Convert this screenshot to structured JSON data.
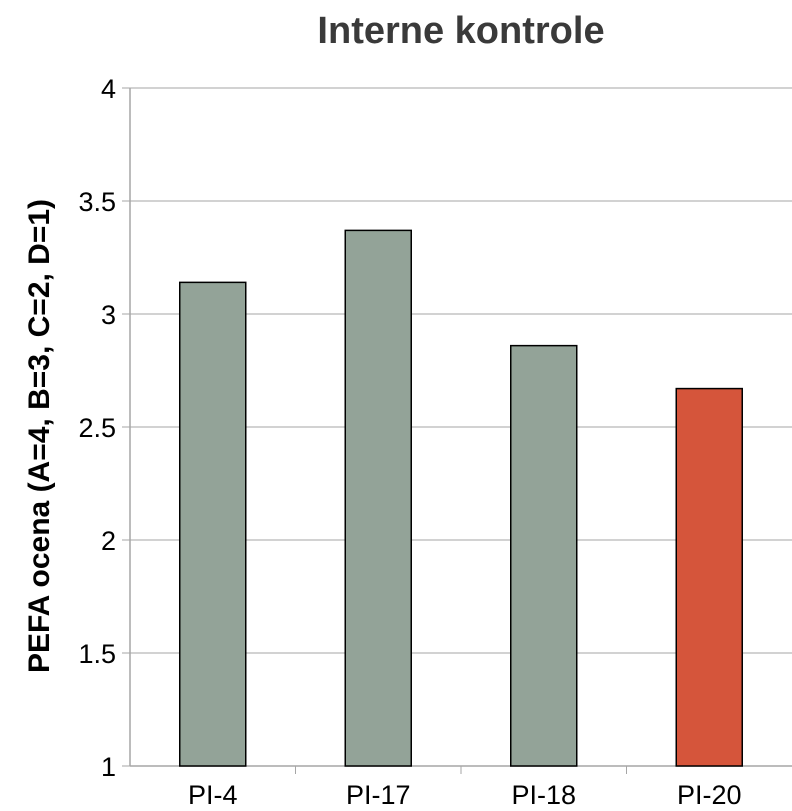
{
  "chart_data": {
    "type": "bar",
    "title": "Interne kontrole",
    "xlabel": "",
    "ylabel": "PEFA ocena  (A=4, B=3, C=2, D=1)",
    "categories": [
      "PI-4",
      "PI-17",
      "PI-18",
      "PI-20"
    ],
    "values": [
      3.14,
      3.37,
      2.86,
      2.67
    ],
    "bar_colors": [
      "#93a398",
      "#93a398",
      "#93a398",
      "#d5553b"
    ],
    "ylim": [
      1,
      4
    ],
    "yticks": [
      1,
      1.5,
      2,
      2.5,
      3,
      3.5,
      4
    ],
    "grid": true,
    "legend": "none"
  }
}
